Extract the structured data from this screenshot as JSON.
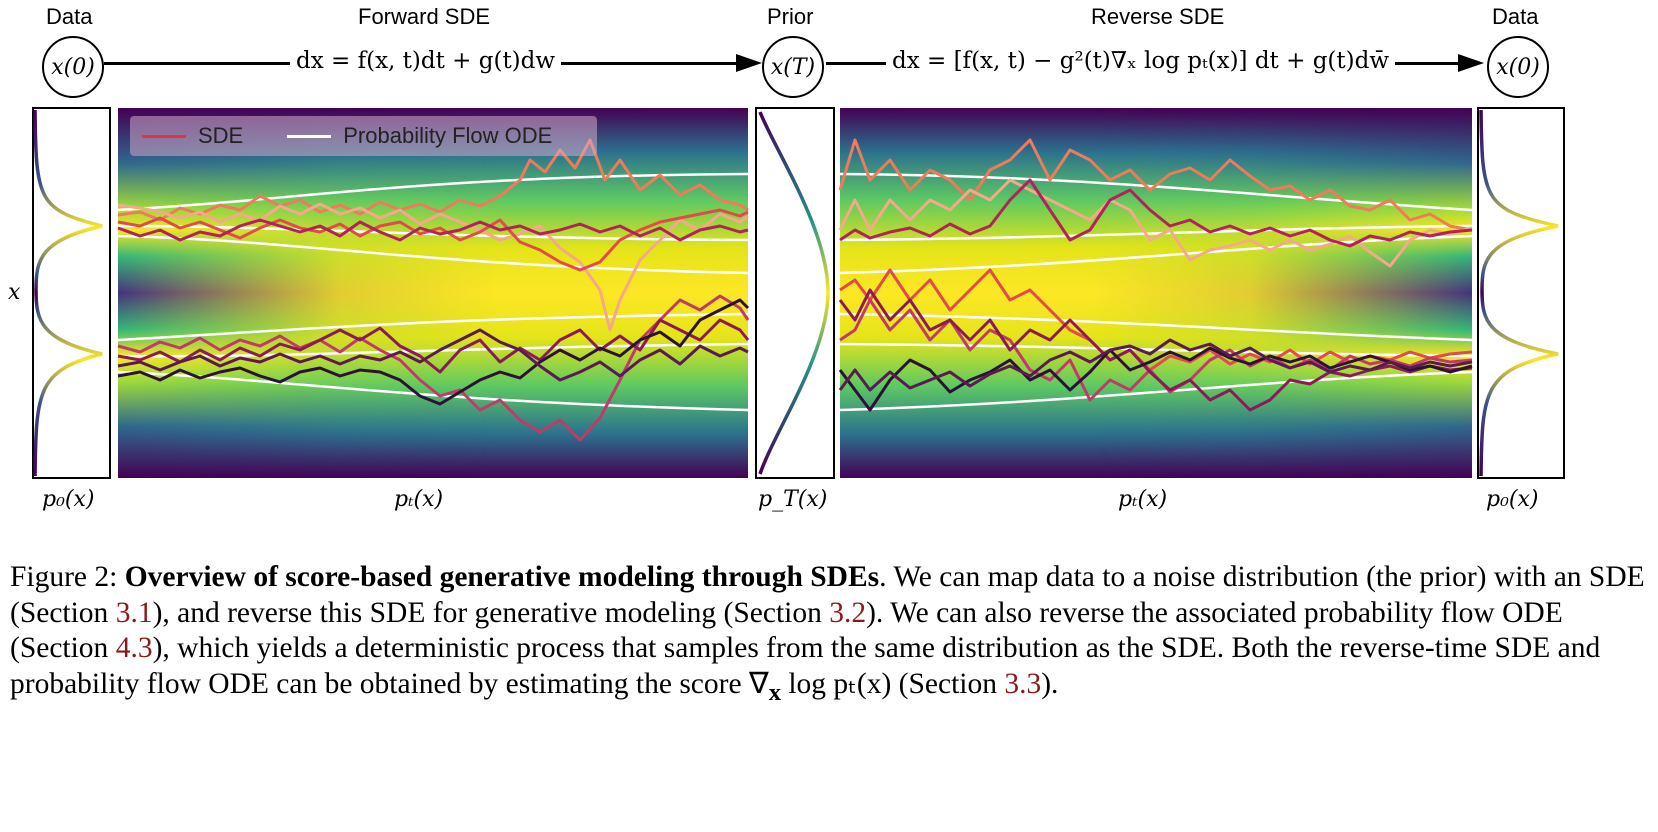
{
  "header": {
    "data_left": "Data",
    "forward": "Forward SDE",
    "prior": "Prior",
    "reverse": "Reverse SDE",
    "data_right": "Data"
  },
  "nodes": {
    "x0_left": "x(0)",
    "xT": "x(T)",
    "x0_right": "x(0)"
  },
  "equations": {
    "forward": "dx = f(x, t)dt + g(t)dw",
    "reverse": "dx = [f(x, t) − g²(t)∇ₓ log pₜ(x)] dt + g(t)dw̄"
  },
  "axis": {
    "y_label": "x",
    "p0_left": "p₀(x)",
    "pt_left": "pₜ(x)",
    "pT": "p_T(x)",
    "pt_right": "pₜ(x)",
    "p0_right": "p₀(x)"
  },
  "legend": {
    "sde": "SDE",
    "ode": "Probability Flow ODE",
    "sde_color": "#e0334a",
    "ode_color": "#ffffff"
  },
  "caption": {
    "figure_label": "Figure 2:",
    "title": "Overview of score-based generative modeling through SDEs",
    "text_1": ". We can map data to a noise distribution (the prior) with an SDE (Section ",
    "ref_1": "3.1",
    "text_2": "), and reverse this SDE for generative modeling (Section ",
    "ref_2": "3.2",
    "text_3": "). We can also reverse the associated probability flow ODE (Section ",
    "ref_3": "4.3",
    "text_4": "), which yields a deterministic process that samples from the same distribution as the SDE. Both the reverse-time SDE and probability flow ODE can be obtained by estimating the score ∇",
    "score_x": "x",
    "text_5": " log pₜ(x) (Section ",
    "ref_4": "3.3",
    "text_6": ")."
  },
  "colors": {
    "background_dark": "#440154",
    "mid": "#21918c",
    "bright": "#fde725"
  }
}
